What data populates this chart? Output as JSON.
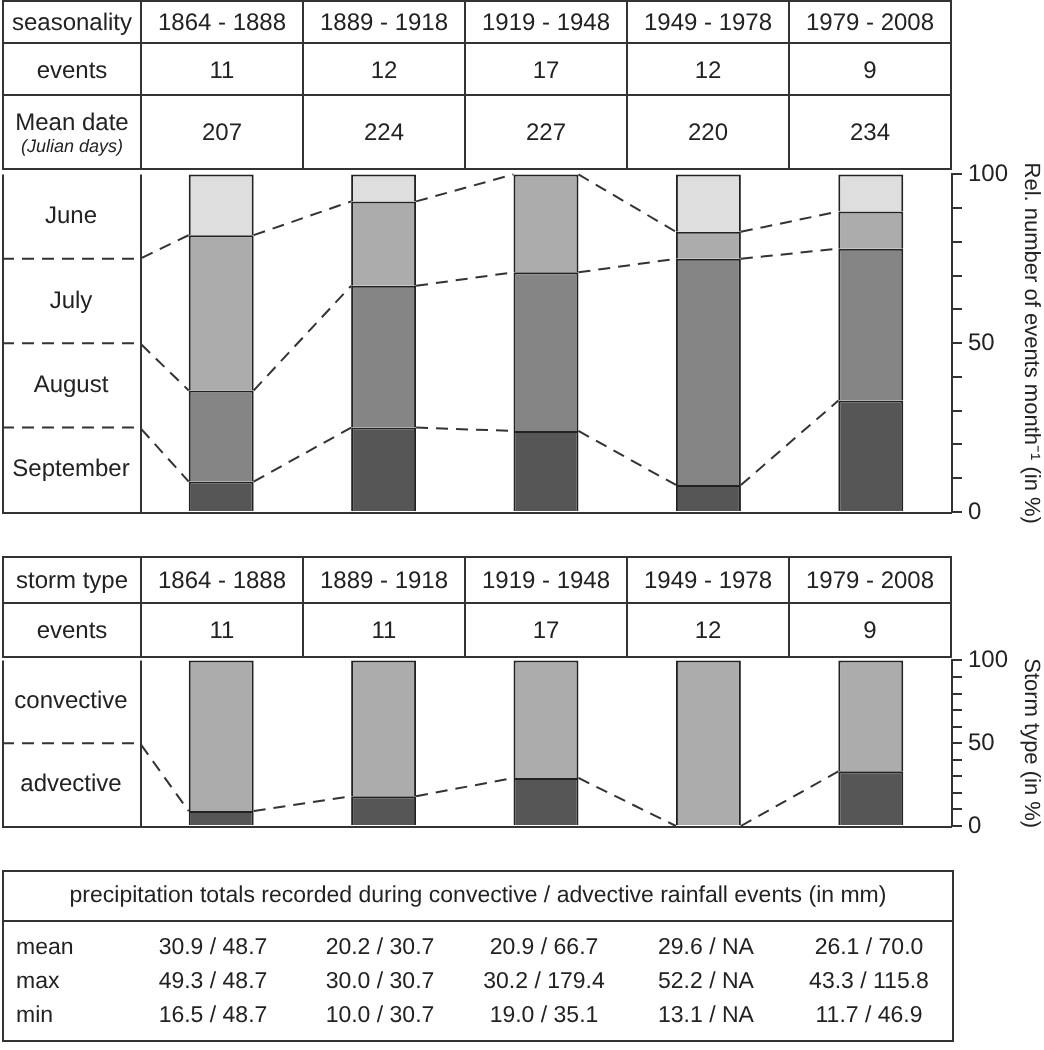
{
  "chart_data": [
    {
      "type": "bar",
      "title": "seasonality",
      "categories": [
        "1864 - 1888",
        "1889 - 1918",
        "1919 - 1948",
        "1949 - 1978",
        "1979 - 2008"
      ],
      "stacked": true,
      "line_style": "dashed",
      "series": [
        {
          "name": "September",
          "color": "#565656",
          "values": [
            9,
            25,
            24,
            8,
            33
          ]
        },
        {
          "name": "August",
          "color": "#858585",
          "values": [
            27,
            42,
            47,
            67,
            45
          ]
        },
        {
          "name": "July",
          "color": "#acacac",
          "values": [
            46,
            25,
            29,
            8,
            11
          ]
        },
        {
          "name": "June",
          "color": "#dedede",
          "values": [
            18,
            8,
            0,
            17,
            11
          ]
        }
      ],
      "ylim": [
        0,
        100
      ],
      "yticks": [
        0,
        {
          "value": 10,
          "label": null
        },
        {
          "value": 20,
          "label": null
        },
        {
          "value": 30,
          "label": null
        },
        {
          "value": 40,
          "label": null
        },
        50,
        {
          "value": 60,
          "label": null
        },
        {
          "value": 70,
          "label": null
        },
        {
          "value": 80,
          "label": null
        },
        {
          "value": 90,
          "label": null
        },
        100
      ],
      "ylabel": "Rel. number of events month⁻¹ (in %)",
      "annotations": [
        "events",
        "11",
        "12",
        "17",
        "12",
        "9",
        "Mean date\n(Julian days)",
        "207",
        "224",
        "227",
        "220",
        "234"
      ]
    },
    {
      "type": "bar",
      "title": "storm type",
      "categories": [
        "1864 - 1888",
        "1889 - 1918",
        "1919 - 1948",
        "1949 - 1978",
        "1979 - 2008"
      ],
      "stacked": true,
      "line_style": "dashed",
      "series": [
        {
          "name": "advective",
          "color": "#565656",
          "values": [
            9,
            18,
            29,
            null,
            33
          ]
        },
        {
          "name": "convective",
          "color": "#acacac",
          "values": [
            91,
            82,
            71,
            100,
            67
          ]
        }
      ],
      "ylim": [
        0,
        100
      ],
      "yticks": [
        0,
        {
          "value": 10,
          "label": null
        },
        {
          "value": 20,
          "label": null
        },
        {
          "value": 30,
          "label": null
        },
        {
          "value": 40,
          "label": null
        },
        50,
        {
          "value": 60,
          "label": null
        },
        {
          "value": 70,
          "label": null
        },
        {
          "value": 80,
          "label": null
        },
        {
          "value": 90,
          "label": null
        },
        100
      ],
      "ylabel": "Storm type (in %)",
      "annotations": [
        "events",
        "11",
        "11",
        "17",
        "12",
        "9"
      ]
    },
    {
      "type": "other",
      "title": "precipitation totals recorded during convective / advective rainfall events (in mm)",
      "annotations": [
        "mean",
        "30.9 / 48.7",
        "20.2 / 30.7",
        "20.9 / 66.7",
        "29.6 / NA",
        "26.1 / 70.0",
        "max",
        "49.3 / 48.7",
        "30.0 / 30.7",
        "30.2 / 179.4",
        "52.2 / NA",
        "43.3 / 115.8",
        "min",
        "16.5 / 48.7",
        "10.0 / 30.7",
        "19.0 / 35.1",
        "13.1 / NA",
        "11.7 / 46.9"
      ]
    }
  ]
}
